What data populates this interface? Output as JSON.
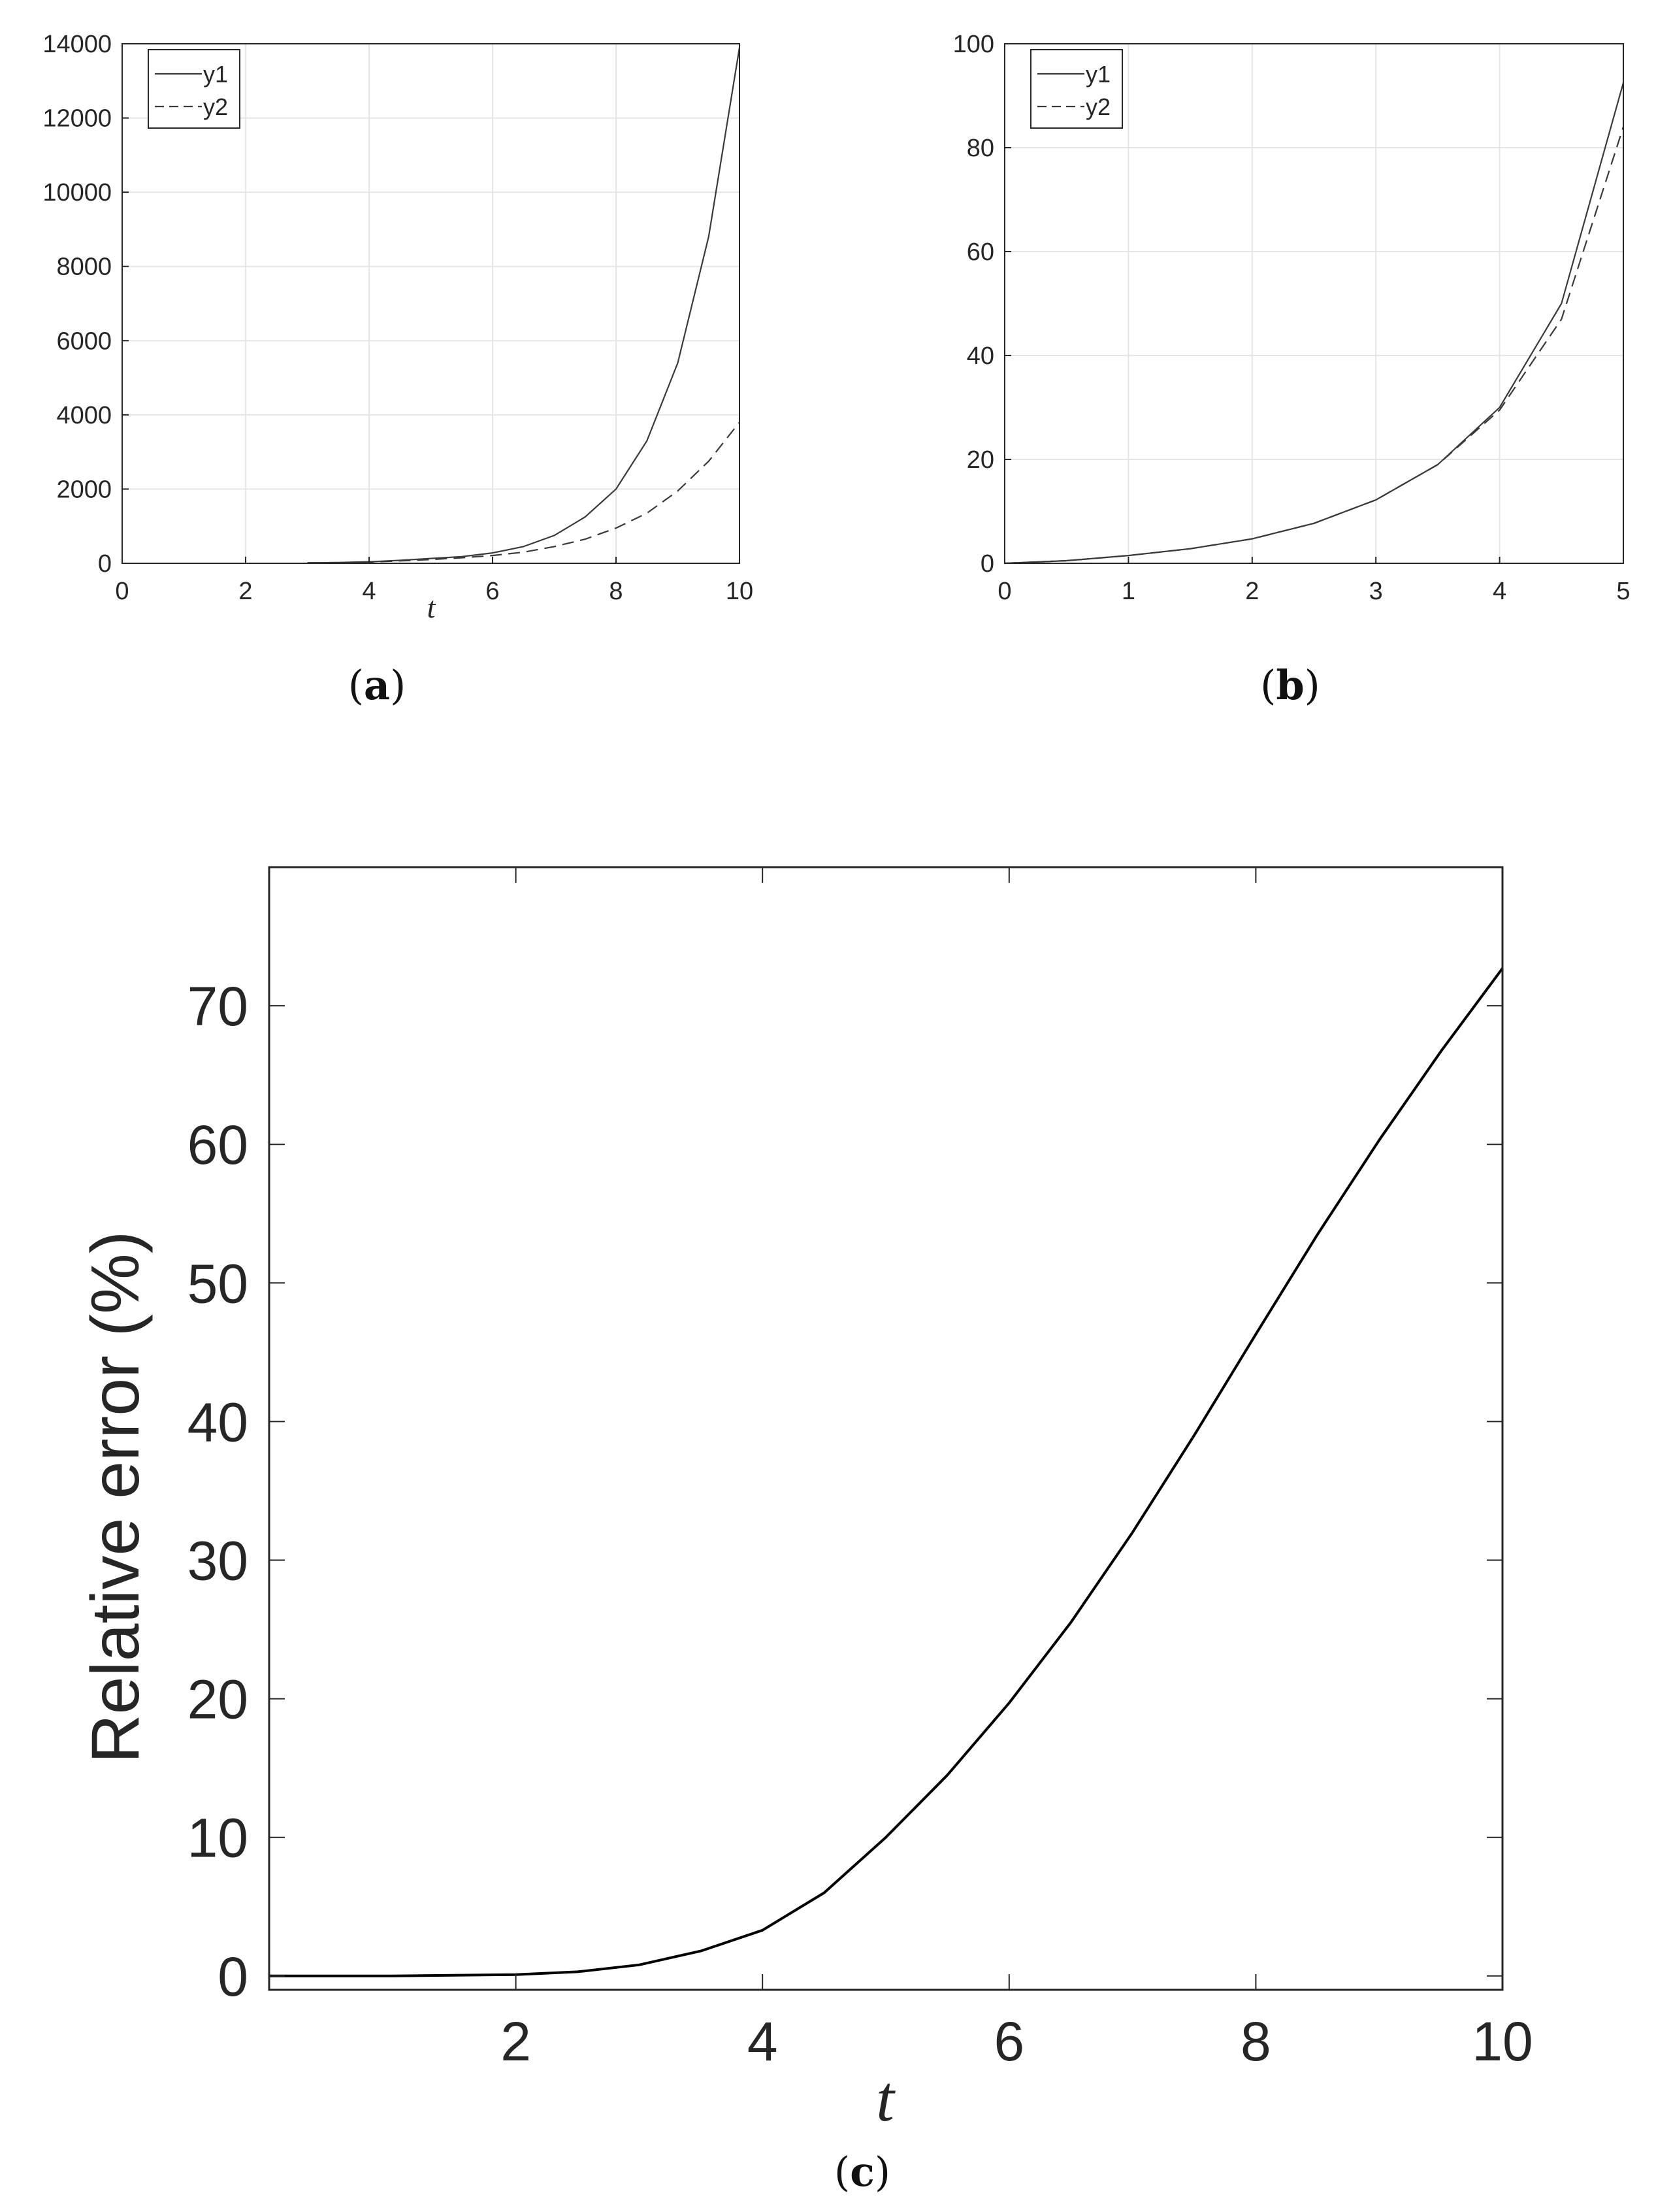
{
  "chart_data": [
    {
      "id": "a",
      "type": "line",
      "caption": "(a)",
      "xlabel": "t",
      "ylabel": "",
      "xlim": [
        0,
        10
      ],
      "ylim": [
        0,
        14000
      ],
      "xticks": [
        0,
        2,
        4,
        6,
        8,
        10
      ],
      "yticks": [
        0,
        2000,
        4000,
        6000,
        8000,
        10000,
        12000,
        14000
      ],
      "grid": true,
      "legend": "top-left",
      "series": [
        {
          "name": "y1",
          "style": "solid",
          "x": [
            3,
            3.5,
            4,
            4.5,
            5,
            5.5,
            6,
            6.5,
            7,
            7.5,
            8,
            8.5,
            9,
            9.5,
            10
          ],
          "y": [
            10,
            20,
            40,
            80,
            130,
            180,
            280,
            450,
            750,
            1250,
            2000,
            3300,
            5400,
            8800,
            13900
          ]
        },
        {
          "name": "y2",
          "style": "dashed",
          "x": [
            3,
            3.5,
            4,
            4.5,
            5,
            5.5,
            6,
            6.5,
            7,
            7.5,
            8,
            8.5,
            9,
            9.5,
            10
          ],
          "y": [
            10,
            20,
            35,
            65,
            100,
            150,
            210,
            300,
            450,
            650,
            950,
            1350,
            1950,
            2750,
            3800
          ]
        }
      ]
    },
    {
      "id": "b",
      "type": "line",
      "caption": "(b)",
      "xlabel": "",
      "ylabel": "",
      "xlim": [
        0,
        5
      ],
      "ylim": [
        0,
        100
      ],
      "xticks": [
        0,
        1,
        2,
        3,
        4,
        5
      ],
      "yticks": [
        0,
        20,
        40,
        60,
        80,
        100
      ],
      "grid": true,
      "legend": "top-left",
      "series": [
        {
          "name": "y1",
          "style": "solid",
          "x": [
            0,
            0.5,
            1,
            1.5,
            2,
            2.5,
            3,
            3.5,
            4,
            4.5,
            5
          ],
          "y": [
            0,
            0.5,
            1.5,
            2.8,
            4.7,
            7.7,
            12.2,
            19,
            30,
            50,
            92.5
          ]
        },
        {
          "name": "y2",
          "style": "dashed",
          "x": [
            0,
            0.5,
            1,
            1.5,
            2,
            2.5,
            3,
            3.5,
            4,
            4.5,
            5
          ],
          "y": [
            0,
            0.5,
            1.5,
            2.8,
            4.7,
            7.7,
            12.2,
            19,
            29.5,
            47,
            84
          ]
        }
      ]
    },
    {
      "id": "c",
      "type": "line",
      "caption": "(c)",
      "xlabel": "t",
      "ylabel": "Relative error (%)",
      "xlim": [
        0,
        10
      ],
      "ylim": [
        -1,
        80
      ],
      "xticks": [
        2,
        4,
        6,
        8,
        10
      ],
      "yticks": [
        0,
        10,
        20,
        30,
        40,
        50,
        60,
        70
      ],
      "grid": false,
      "series": [
        {
          "name": "",
          "style": "solid",
          "x": [
            0,
            1,
            2,
            2.5,
            3,
            3.5,
            4,
            4.5,
            5,
            5.5,
            6,
            6.5,
            7,
            7.5,
            8,
            8.5,
            9,
            9.5,
            10
          ],
          "y": [
            0,
            0,
            0.1,
            0.3,
            0.8,
            1.8,
            3.3,
            6,
            10,
            14.5,
            19.7,
            25.5,
            32,
            39,
            46.3,
            53.5,
            60.3,
            66.7,
            72.7
          ]
        }
      ]
    }
  ]
}
